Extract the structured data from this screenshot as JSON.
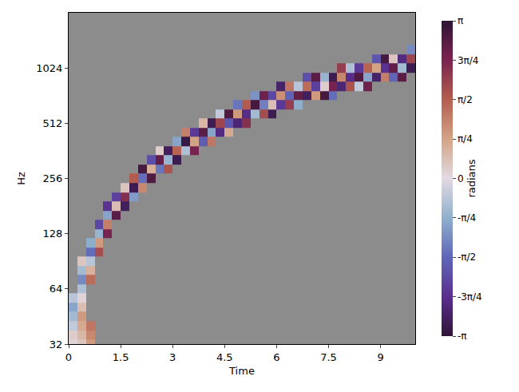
{
  "chart_data": {
    "type": "heatmap",
    "x_label": "Time",
    "y_label": "Hz",
    "log": "y",
    "xlim": [
      0,
      10
    ],
    "ylim": [
      32,
      2048
    ],
    "xticks": [
      0,
      1.5,
      3,
      4.5,
      6,
      7.5,
      9
    ],
    "yticks": [
      32,
      64,
      128,
      256,
      512,
      1024
    ],
    "x": [
      0.125,
      0.375,
      0.625,
      0.875,
      1.125,
      1.375,
      1.625,
      1.875,
      2.125,
      2.375,
      2.625,
      2.875,
      3.125,
      3.375,
      3.625,
      3.875,
      4.125,
      4.375,
      4.625,
      4.875,
      5.125,
      5.375,
      5.625,
      5.875,
      6.125,
      6.375,
      6.625,
      6.875,
      7.125,
      7.375,
      7.625,
      7.875,
      8.125,
      8.375,
      8.625,
      8.875,
      9.125,
      9.375,
      9.625,
      9.875
    ],
    "y": [
      32,
      35.9,
      40.3,
      45.3,
      50.8,
      57,
      64,
      71.8,
      80.6,
      90.5,
      101.6,
      114,
      128,
      143.7,
      161.3,
      181,
      203.2,
      228.1,
      256,
      287.4,
      322.5,
      362,
      406.4,
      456.1,
      512,
      574.7,
      645.1,
      724.1,
      812.7,
      912.3,
      1024,
      1149.4,
      1290.2,
      1448.2,
      1625.5,
      1824.6,
      2048
    ],
    "cells": [
      [
        0.125,
        32,
        0.1
      ],
      [
        0.125,
        35.9,
        0.2
      ],
      [
        0.125,
        40.3,
        -0.3
      ],
      [
        0.125,
        45.3,
        -0.6
      ],
      [
        0.125,
        50.8,
        -0.9
      ],
      [
        0.125,
        57,
        -0.4
      ],
      [
        0.375,
        32,
        0.3
      ],
      [
        0.375,
        35.9,
        0.5
      ],
      [
        0.375,
        40.3,
        0.7
      ],
      [
        0.375,
        45.3,
        0.9
      ],
      [
        0.375,
        50.8,
        0.4
      ],
      [
        0.375,
        57,
        0.1
      ],
      [
        0.375,
        64,
        -0.5
      ],
      [
        0.375,
        71.8,
        -1.2
      ],
      [
        0.375,
        80.6,
        -0.6
      ],
      [
        0.375,
        90.5,
        0.3
      ],
      [
        0.625,
        32,
        0.9
      ],
      [
        0.625,
        35.9,
        1.1
      ],
      [
        0.625,
        40.3,
        1.3
      ],
      [
        0.625,
        71.8,
        1.4
      ],
      [
        0.625,
        80.6,
        0.6
      ],
      [
        0.625,
        90.5,
        -0.4
      ],
      [
        0.625,
        101.6,
        -1.5
      ],
      [
        0.625,
        114,
        -0.8
      ],
      [
        0.875,
        101.6,
        1.8
      ],
      [
        0.875,
        114,
        0.9
      ],
      [
        0.875,
        128,
        -0.7
      ],
      [
        0.875,
        143.7,
        -2.0
      ],
      [
        1.125,
        128,
        2.4
      ],
      [
        1.125,
        143.7,
        1.2
      ],
      [
        1.125,
        161.3,
        -0.9
      ],
      [
        1.125,
        181,
        -2.3
      ],
      [
        1.375,
        161.3,
        2.7
      ],
      [
        1.375,
        181,
        0.4
      ],
      [
        1.375,
        203.2,
        -2.1
      ],
      [
        1.625,
        181,
        -2.8
      ],
      [
        1.625,
        203.2,
        2.2
      ],
      [
        1.625,
        228.1,
        0.3
      ],
      [
        1.875,
        203.2,
        -1.0
      ],
      [
        1.875,
        228.1,
        -2.9
      ],
      [
        1.875,
        256,
        1.6
      ],
      [
        2.125,
        228.1,
        1.1
      ],
      [
        2.125,
        256,
        -1.5
      ],
      [
        2.125,
        287.4,
        2.9
      ],
      [
        2.375,
        256,
        2.8
      ],
      [
        2.375,
        287.4,
        0.6
      ],
      [
        2.375,
        322.5,
        -1.9
      ],
      [
        2.625,
        287.4,
        -1.4
      ],
      [
        2.625,
        322.5,
        2.6
      ],
      [
        2.625,
        362,
        0.2
      ],
      [
        2.875,
        287.4,
        1.7
      ],
      [
        2.875,
        322.5,
        -0.7
      ],
      [
        2.875,
        362,
        -2.8
      ],
      [
        3.125,
        322.5,
        -2.9
      ],
      [
        3.125,
        362,
        1.5
      ],
      [
        3.125,
        406.4,
        -0.9
      ],
      [
        3.375,
        362,
        -0.5
      ],
      [
        3.375,
        406.4,
        -3.0
      ],
      [
        3.375,
        456.1,
        1.2
      ],
      [
        3.625,
        362,
        2.4
      ],
      [
        3.625,
        406.4,
        0.8
      ],
      [
        3.625,
        456.1,
        -2.2
      ],
      [
        3.875,
        406.4,
        -1.7
      ],
      [
        3.875,
        456.1,
        2.7
      ],
      [
        3.875,
        512,
        0.5
      ],
      [
        4.125,
        406.4,
        1.3
      ],
      [
        4.125,
        456.1,
        -0.9
      ],
      [
        4.125,
        512,
        -2.9
      ],
      [
        4.375,
        456.1,
        -2.5
      ],
      [
        4.375,
        512,
        1.9
      ],
      [
        4.375,
        574.7,
        -0.3
      ],
      [
        4.625,
        456.1,
        0.7
      ],
      [
        4.625,
        512,
        -1.8
      ],
      [
        4.625,
        574.7,
        2.8
      ],
      [
        4.875,
        512,
        -2.6
      ],
      [
        4.875,
        574.7,
        0.9
      ],
      [
        4.875,
        645.1,
        -1.4
      ],
      [
        5.125,
        512,
        2.2
      ],
      [
        5.125,
        574.7,
        -2.4
      ],
      [
        5.125,
        645.1,
        1.6
      ],
      [
        5.375,
        574.7,
        -0.6
      ],
      [
        5.375,
        645.1,
        2.9
      ],
      [
        5.375,
        724.1,
        -1.1
      ],
      [
        5.625,
        574.7,
        1.8
      ],
      [
        5.625,
        645.1,
        -1.3
      ],
      [
        5.625,
        724.1,
        2.5
      ],
      [
        5.875,
        574.7,
        -2.9
      ],
      [
        5.875,
        645.1,
        0.4
      ],
      [
        5.875,
        724.1,
        -2.0
      ],
      [
        6.125,
        645.1,
        -2.2
      ],
      [
        6.125,
        724.1,
        1.0
      ],
      [
        6.125,
        812.7,
        -2.7
      ],
      [
        6.375,
        645.1,
        2.0
      ],
      [
        6.375,
        724.1,
        -1.6
      ],
      [
        6.375,
        812.7,
        1.3
      ],
      [
        6.625,
        645.1,
        -0.8
      ],
      [
        6.625,
        724.1,
        2.6
      ],
      [
        6.625,
        812.7,
        -0.4
      ],
      [
        6.875,
        724.1,
        -2.8
      ],
      [
        6.875,
        812.7,
        1.4
      ],
      [
        6.875,
        912.3,
        -1.9
      ],
      [
        7.125,
        724.1,
        0.9
      ],
      [
        7.125,
        812.7,
        -2.1
      ],
      [
        7.125,
        912.3,
        2.7
      ],
      [
        7.375,
        724.1,
        2.9
      ],
      [
        7.375,
        812.7,
        0.2
      ],
      [
        7.375,
        912.3,
        -0.7
      ],
      [
        7.625,
        724.1,
        -1.5
      ],
      [
        7.625,
        812.7,
        2.4
      ],
      [
        7.625,
        912.3,
        -2.9
      ],
      [
        7.875,
        812.7,
        -2.6
      ],
      [
        7.875,
        912.3,
        1.1
      ],
      [
        7.875,
        1024,
        2.0
      ],
      [
        8.125,
        812.7,
        1.7
      ],
      [
        8.125,
        912.3,
        -2.4
      ],
      [
        8.125,
        1024,
        -0.5
      ],
      [
        8.375,
        812.7,
        -0.3
      ],
      [
        8.375,
        912.3,
        2.8
      ],
      [
        8.375,
        1024,
        -2.2
      ],
      [
        8.625,
        812.7,
        2.5
      ],
      [
        8.625,
        912.3,
        -0.9
      ],
      [
        8.625,
        1024,
        1.5
      ],
      [
        8.875,
        912.3,
        -2.7
      ],
      [
        8.875,
        1024,
        0.8
      ],
      [
        8.875,
        1149.4,
        -1.8
      ],
      [
        9.125,
        912.3,
        1.2
      ],
      [
        9.125,
        1024,
        -2.3
      ],
      [
        9.125,
        1149.4,
        2.9
      ],
      [
        9.375,
        912.3,
        -1.6
      ],
      [
        9.375,
        1024,
        2.6
      ],
      [
        9.375,
        1149.4,
        0.3
      ],
      [
        9.625,
        912.3,
        2.7
      ],
      [
        9.625,
        1024,
        -0.6
      ],
      [
        9.625,
        1149.4,
        -2.5
      ],
      [
        9.875,
        1024,
        -2.9
      ],
      [
        9.875,
        1149.4,
        1.9
      ],
      [
        9.875,
        1290.2,
        -1.2
      ]
    ],
    "colorbar": {
      "title": "radians",
      "range": [
        -3.14159,
        3.14159
      ],
      "ticks": [
        {
          "value": -3.14159,
          "label": "-π"
        },
        {
          "value": -2.35619,
          "label": "-3π/4"
        },
        {
          "value": -1.5708,
          "label": "-π/2"
        },
        {
          "value": -0.7854,
          "label": "-π/4"
        },
        0,
        {
          "value": 0.7854,
          "label": "π/4"
        },
        {
          "value": 1.5708,
          "label": "π/2"
        },
        {
          "value": 2.35619,
          "label": "3π/4"
        },
        {
          "value": 3.14159,
          "label": "π"
        }
      ]
    }
  }
}
